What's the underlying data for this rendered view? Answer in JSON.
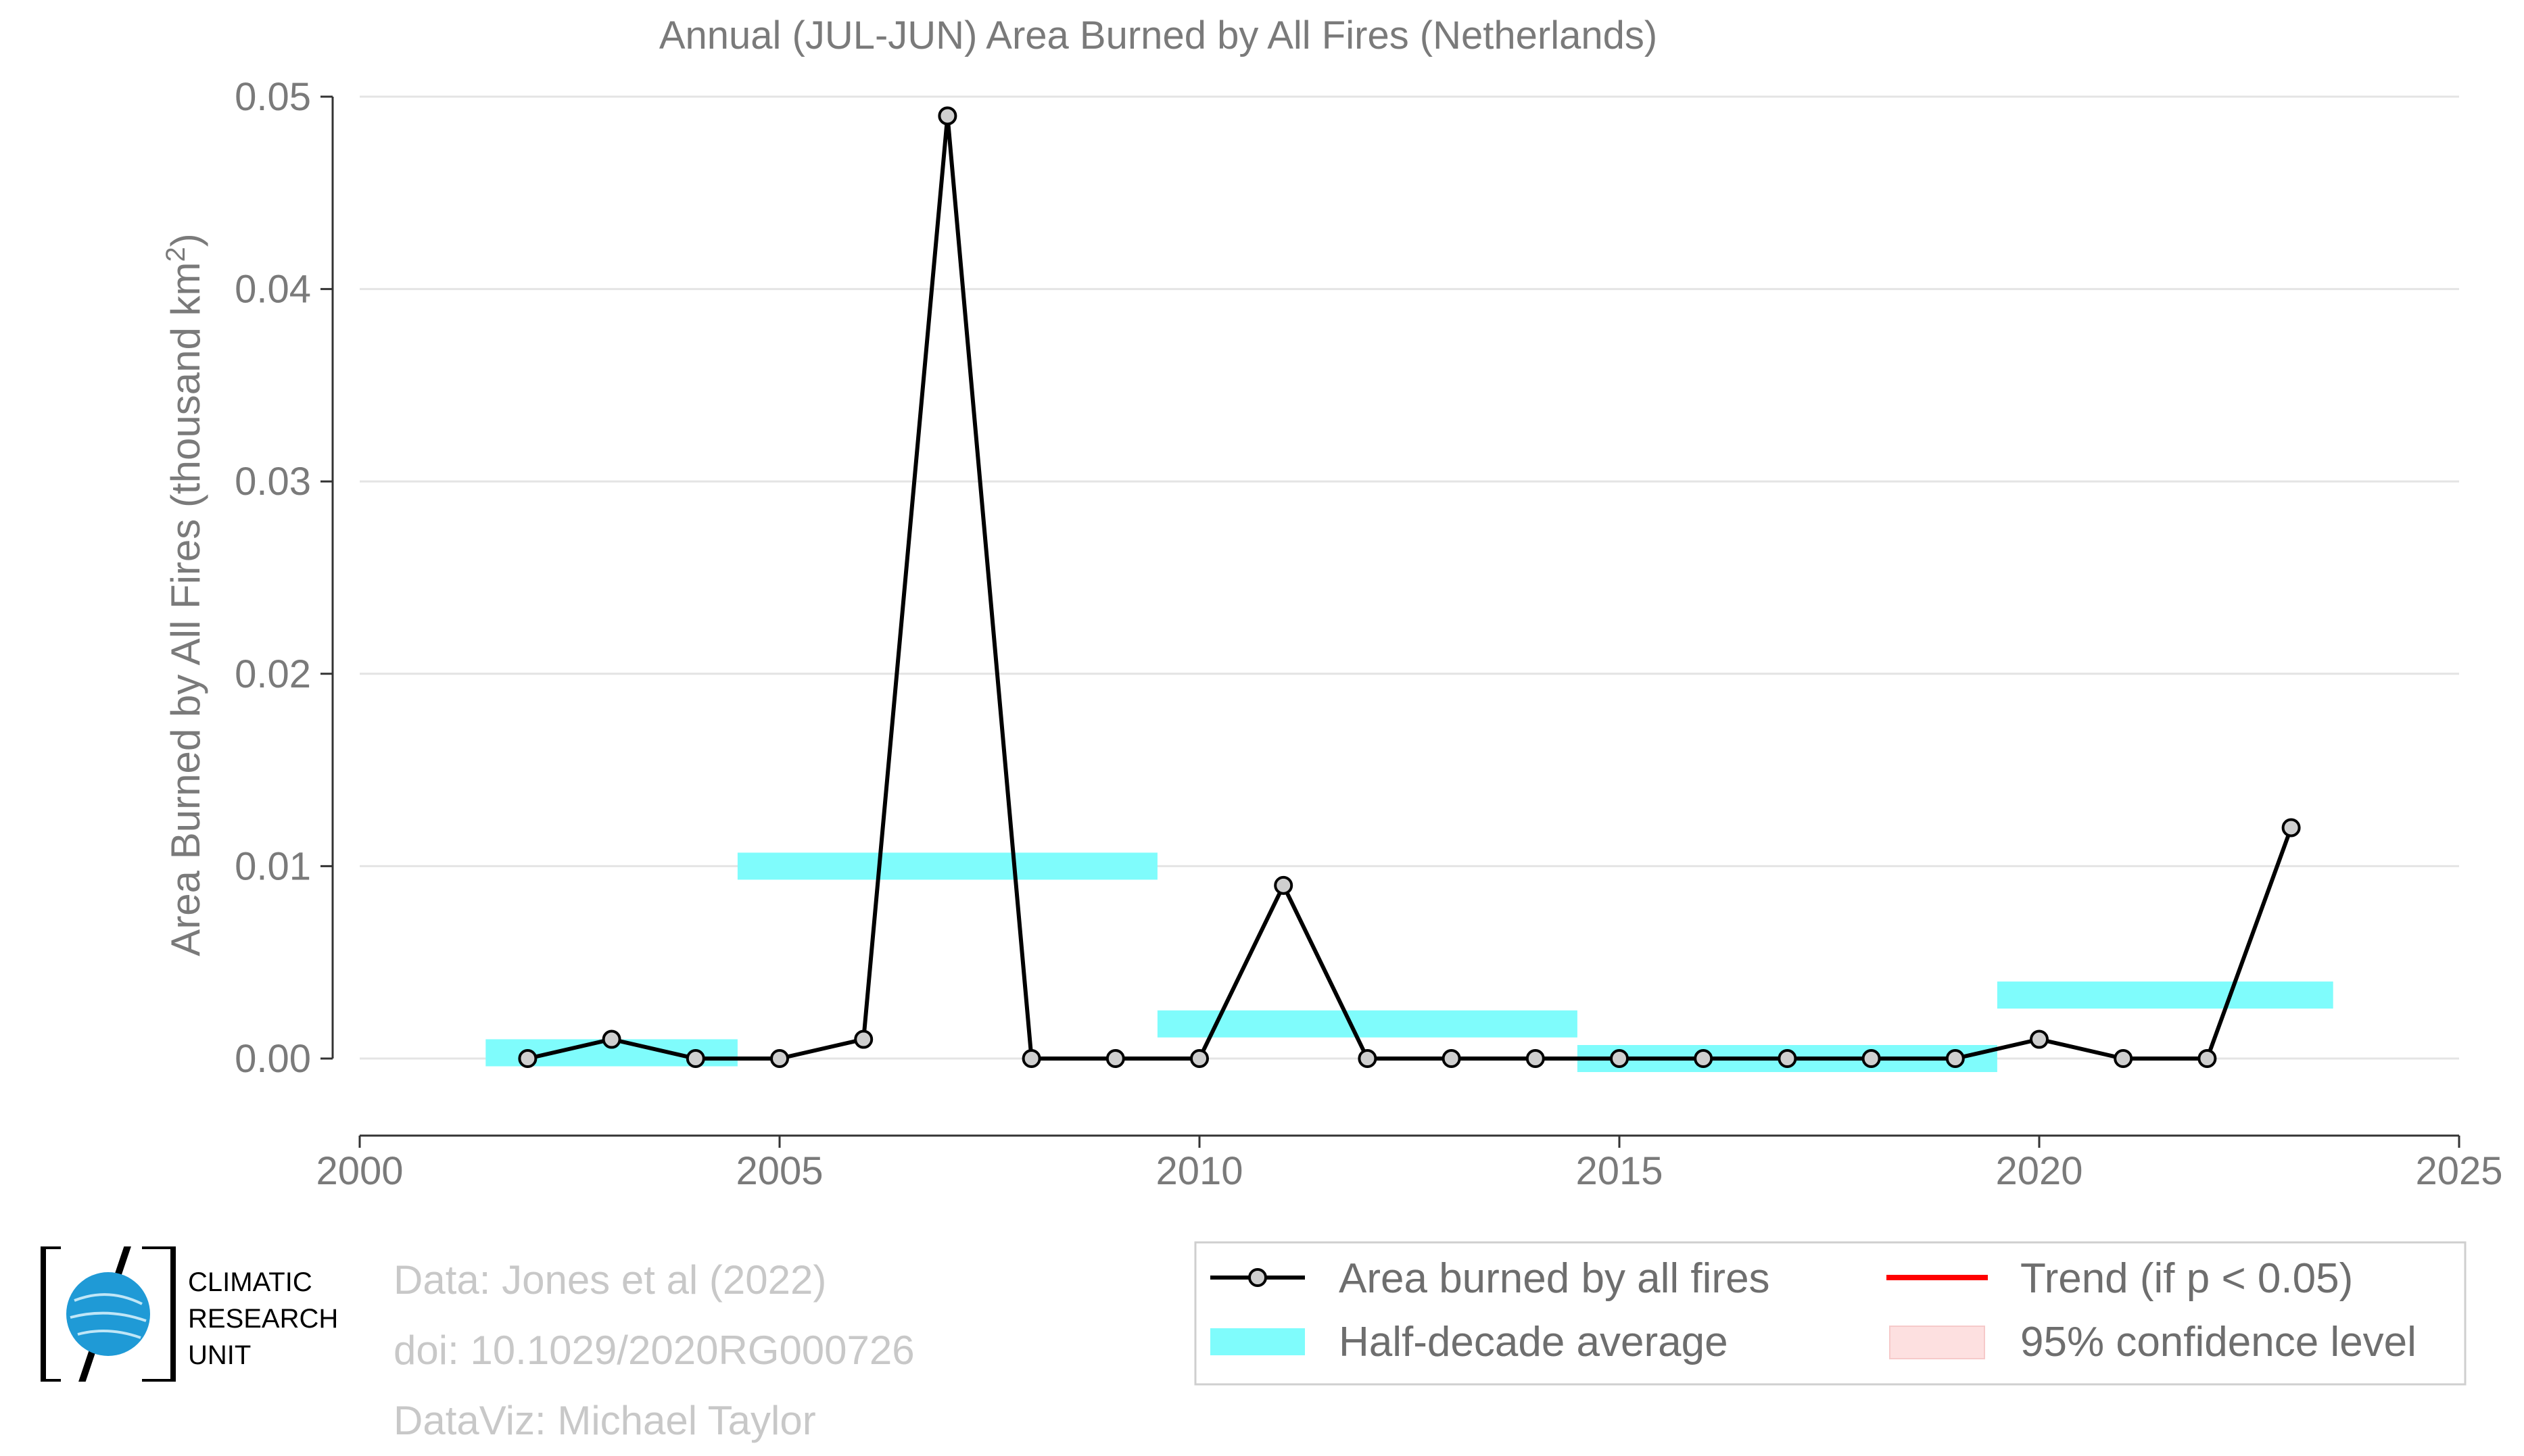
{
  "chart_data": {
    "type": "line",
    "title": "Annual (JUL-JUN) Area Burned by All Fires (Netherlands)",
    "ylabel": "Area Burned by All Fires (thousand km",
    "ylabel_sup": "2",
    "ylabel_close": ")",
    "xlabel": "",
    "xlim": [
      2000,
      2025
    ],
    "ylim": [
      -0.004,
      0.05
    ],
    "xticks": [
      2000,
      2005,
      2010,
      2015,
      2020,
      2025
    ],
    "yticks": [
      0.0,
      0.01,
      0.02,
      0.03,
      0.04,
      0.05
    ],
    "ytick_labels": [
      "0.00",
      "0.01",
      "0.02",
      "0.03",
      "0.04",
      "0.05"
    ],
    "grid": "horizontal",
    "series": [
      {
        "name": "Area burned by all fires",
        "color": "#000000",
        "x": [
          2002,
          2003,
          2004,
          2005,
          2006,
          2007,
          2008,
          2009,
          2010,
          2011,
          2012,
          2013,
          2014,
          2015,
          2016,
          2017,
          2018,
          2019,
          2020,
          2021,
          2022,
          2023
        ],
        "y": [
          0.0,
          0.001,
          0.0,
          0.0,
          0.001,
          0.049,
          0.0,
          0.0,
          0.0,
          0.009,
          0.0,
          0.0,
          0.0,
          0.0,
          0.0,
          0.0,
          0.0,
          0.0,
          0.001,
          0.0,
          0.0,
          0.012
        ]
      }
    ],
    "half_decade_averages": {
      "name": "Half-decade average",
      "color": "#7ffcfc",
      "segments": [
        {
          "x0": 2001.5,
          "x1": 2004.5,
          "y": 0.0003
        },
        {
          "x0": 2004.5,
          "x1": 2009.5,
          "y": 0.01
        },
        {
          "x0": 2009.5,
          "x1": 2014.5,
          "y": 0.0018
        },
        {
          "x0": 2014.5,
          "x1": 2019.5,
          "y": 0.0
        },
        {
          "x0": 2019.5,
          "x1": 2023.5,
          "y": 0.0033
        }
      ]
    },
    "legend": {
      "placement": "bottom-right",
      "entries": [
        {
          "label": "Area burned by all fires",
          "kind": "line-marker",
          "color": "#000000"
        },
        {
          "label": "Trend (if p < 0.05)",
          "kind": "line",
          "color": "#ff0000"
        },
        {
          "label": "Half-decade average",
          "kind": "band",
          "color": "#7ffcfc"
        },
        {
          "label": "95% confidence level",
          "kind": "band",
          "color": "#fde0e0"
        }
      ]
    }
  },
  "credits": {
    "line1": "Data: Jones et al (2022)",
    "line2": "doi: 10.1029/2020RG000726",
    "line3": "DataViz: Michael Taylor"
  },
  "logo": {
    "line1": "CLIMATIC",
    "line2": "RESEARCH",
    "line3": "UNIT",
    "globe_color": "#1f9ad6"
  }
}
